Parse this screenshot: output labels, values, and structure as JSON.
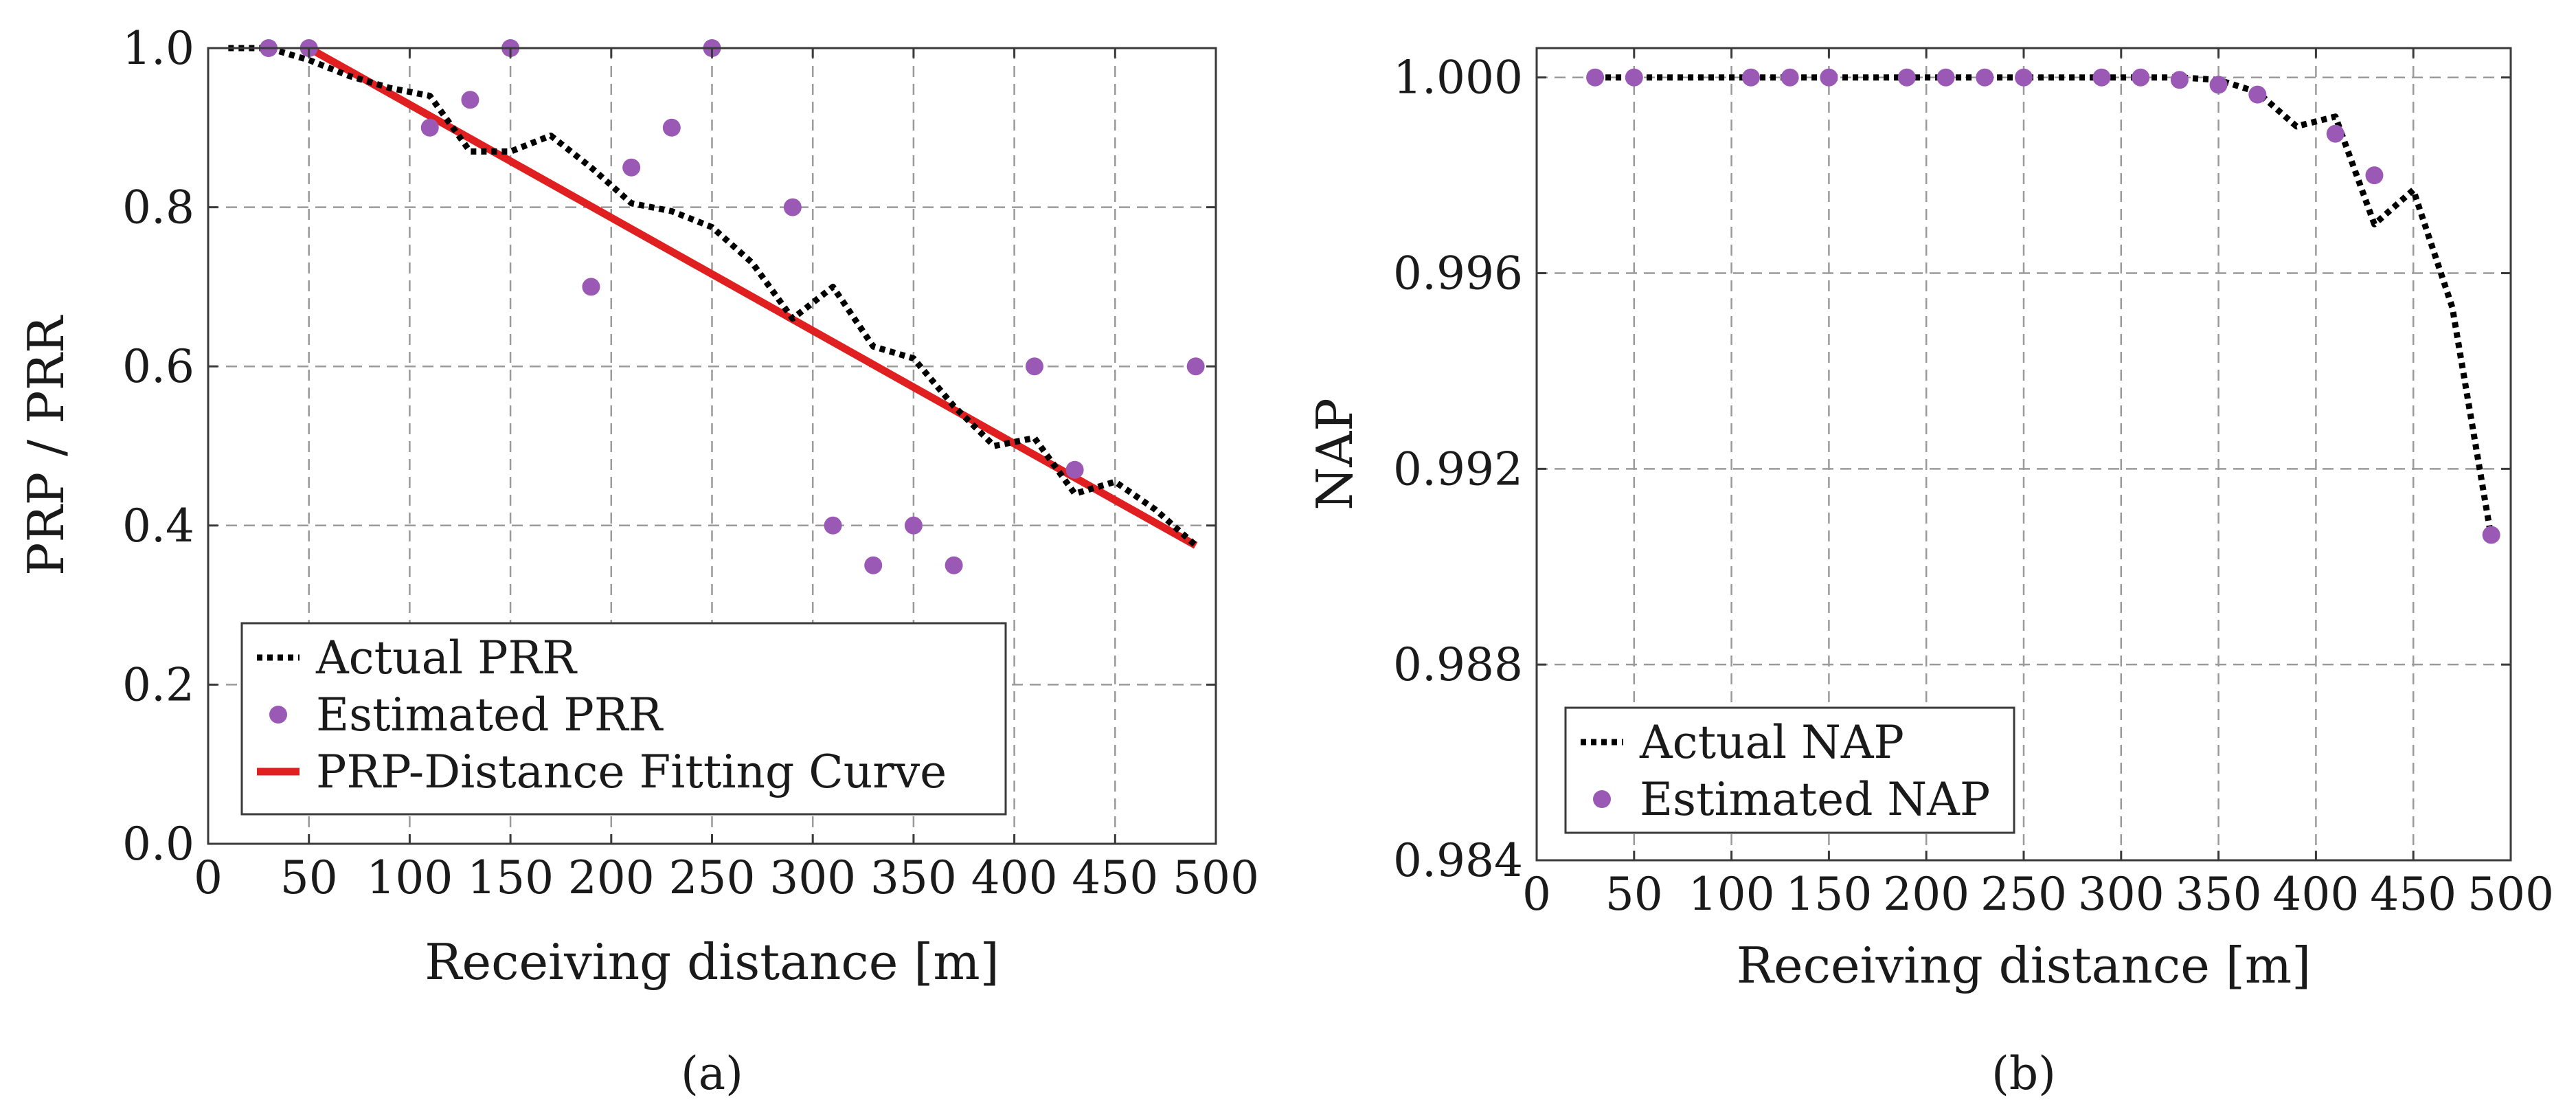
{
  "colors": {
    "actual_line": "#000000",
    "estimated_marker": "#9b59b6",
    "fit_line": "#e02020"
  },
  "chart_data": [
    {
      "type": "line",
      "caption": "(a)",
      "xlabel": "Receiving distance [m]",
      "ylabel": "PRP / PRR",
      "xlim": [
        0,
        500
      ],
      "ylim": [
        0,
        1
      ],
      "xticks": [
        0,
        50,
        100,
        150,
        200,
        250,
        300,
        350,
        400,
        450,
        500
      ],
      "yticks": [
        0.0,
        0.2,
        0.4,
        0.6,
        0.8,
        1.0
      ],
      "ytick_labels": [
        "0.0",
        "0.2",
        "0.4",
        "0.6",
        "0.8",
        "1.0"
      ],
      "grid": true,
      "legend_position": "bottom-left",
      "series": [
        {
          "name": "Actual PRR",
          "style": "dotted-line",
          "x": [
            10,
            30,
            50,
            70,
            90,
            110,
            130,
            150,
            170,
            190,
            210,
            230,
            250,
            270,
            290,
            310,
            330,
            350,
            370,
            390,
            410,
            430,
            450,
            470,
            490
          ],
          "y": [
            1.0,
            1.0,
            0.985,
            0.965,
            0.95,
            0.94,
            0.87,
            0.87,
            0.89,
            0.85,
            0.805,
            0.795,
            0.775,
            0.73,
            0.66,
            0.7,
            0.625,
            0.61,
            0.55,
            0.5,
            0.51,
            0.44,
            0.455,
            0.42,
            0.375
          ]
        },
        {
          "name": "Estimated PRR",
          "style": "markers",
          "x": [
            30,
            50,
            110,
            130,
            150,
            190,
            210,
            230,
            250,
            290,
            310,
            330,
            350,
            370,
            410,
            430,
            490
          ],
          "y": [
            1.0,
            1.0,
            0.9,
            0.935,
            1.0,
            0.7,
            0.85,
            0.9,
            1.0,
            0.8,
            0.4,
            0.35,
            0.4,
            0.35,
            0.6,
            0.47,
            0.6
          ]
        },
        {
          "name": "PRP-Distance Fitting Curve",
          "style": "solid-line",
          "x": [
            50,
            490
          ],
          "y": [
            1.0,
            0.375
          ]
        }
      ]
    },
    {
      "type": "line",
      "caption": "(b)",
      "xlabel": "Receiving distance [m]",
      "ylabel": "NAP",
      "xlim": [
        0,
        500
      ],
      "ylim": [
        0.984,
        1.0006
      ],
      "xticks": [
        0,
        50,
        100,
        150,
        200,
        250,
        300,
        350,
        400,
        450,
        500
      ],
      "yticks": [
        0.984,
        0.988,
        0.992,
        0.996,
        1.0
      ],
      "ytick_labels": [
        "0.984",
        "0.988",
        "0.992",
        "0.996",
        "1.000"
      ],
      "grid": true,
      "legend_position": "bottom-left",
      "series": [
        {
          "name": "Actual NAP",
          "style": "dotted-line",
          "x": [
            30,
            50,
            70,
            90,
            110,
            130,
            150,
            170,
            190,
            210,
            230,
            250,
            270,
            290,
            310,
            330,
            350,
            370,
            390,
            410,
            430,
            450,
            470,
            490
          ],
          "y": [
            1.0,
            1.0,
            1.0,
            1.0,
            1.0,
            1.0,
            1.0,
            1.0,
            1.0,
            1.0,
            1.0,
            1.0,
            1.0,
            1.0,
            1.0,
            1.0,
            0.99995,
            0.9997,
            0.999,
            0.9992,
            0.997,
            0.9977,
            0.9953,
            0.9906
          ]
        },
        {
          "name": "Estimated NAP",
          "style": "markers",
          "x": [
            30,
            50,
            110,
            130,
            150,
            190,
            210,
            230,
            250,
            290,
            310,
            330,
            350,
            370,
            410,
            430,
            490
          ],
          "y": [
            1.0,
            1.0,
            1.0,
            1.0,
            1.0,
            1.0,
            1.0,
            1.0,
            1.0,
            1.0,
            1.0,
            0.99995,
            0.99985,
            0.99965,
            0.99885,
            0.998,
            0.99065
          ]
        }
      ]
    }
  ]
}
